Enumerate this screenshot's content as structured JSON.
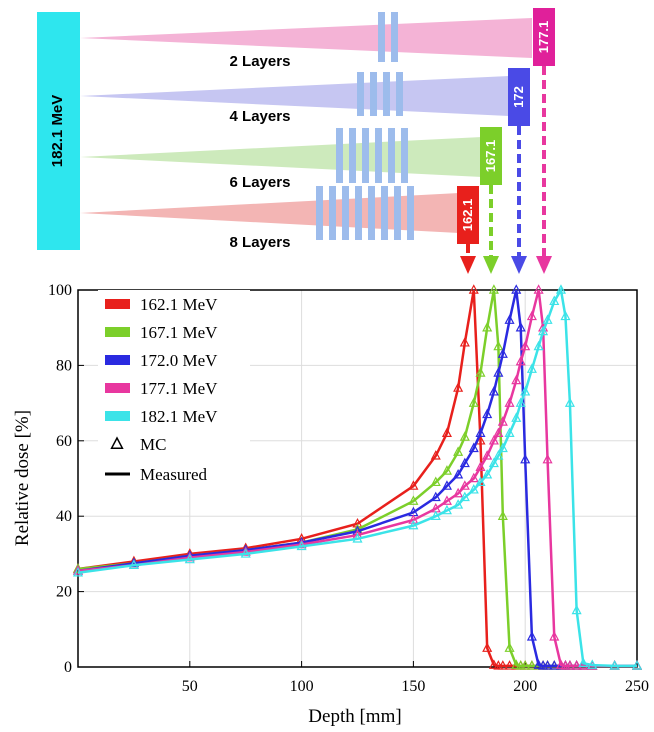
{
  "diagram": {
    "source_energy": "182.1 MeV",
    "rows": [
      {
        "layers": "2 Layers",
        "energy": "177.1"
      },
      {
        "layers": "4 Layers",
        "energy": "172"
      },
      {
        "layers": "6 Layers",
        "energy": "167.1"
      },
      {
        "layers": "8 Layers",
        "energy": "162.1"
      }
    ]
  },
  "chart_data": {
    "type": "line",
    "xlabel": "Depth [mm]",
    "ylabel": "Relative dose [%]",
    "x": [
      0,
      25,
      50,
      75,
      100,
      125,
      150,
      160,
      165,
      170,
      173,
      177,
      180,
      183,
      186,
      188,
      190,
      193,
      196,
      198,
      200,
      203,
      206,
      208,
      210,
      213,
      216,
      218,
      220,
      223,
      226,
      230,
      240,
      250
    ],
    "series": [
      {
        "name": "162.1 MeV",
        "color": "#e8201c",
        "values": [
          26,
          28,
          30,
          31.5,
          34,
          38,
          48,
          56,
          62,
          74,
          86,
          100,
          60,
          5,
          0.5,
          0.3,
          0.3,
          0.3,
          0.3,
          0.3,
          0.3,
          0.3,
          0.3,
          0.3,
          0.3,
          0.3,
          0.3,
          0.3,
          0.3,
          0.3,
          0.3,
          0.3,
          0.3,
          0.3
        ]
      },
      {
        "name": "167.1 MeV",
        "color": "#7ccf2a",
        "values": [
          26,
          27.5,
          29.5,
          31,
          33,
          36.5,
          44,
          49,
          52,
          57,
          61,
          70,
          78,
          90,
          100,
          85,
          40,
          5,
          0.5,
          0.3,
          0.3,
          0.3,
          0.3,
          0.3,
          0.3,
          0.3,
          0.3,
          0.3,
          0.3,
          0.3,
          0.3,
          0.3,
          0.3,
          0.3
        ]
      },
      {
        "name": "172.0 MeV",
        "color": "#2a2ae0",
        "values": [
          25.5,
          27.5,
          29.5,
          31,
          33,
          36,
          41,
          45,
          48,
          51,
          54,
          58,
          62,
          67,
          73,
          78,
          83,
          92,
          100,
          90,
          55,
          8,
          0.5,
          0.3,
          0.3,
          0.3,
          0.3,
          0.3,
          0.3,
          0.3,
          0.3,
          0.3,
          0.3,
          0.3
        ]
      },
      {
        "name": "177.1 MeV",
        "color": "#e8379f",
        "values": [
          25.5,
          27,
          29,
          30.5,
          32.5,
          35,
          39,
          42,
          44,
          46,
          48,
          50,
          53,
          56,
          60,
          62,
          65,
          70,
          76,
          81,
          85,
          93,
          100,
          90,
          55,
          8,
          0.5,
          0.3,
          0.3,
          0.3,
          0.3,
          0.3,
          0.3,
          0.3
        ]
      },
      {
        "name": "182.1 MeV",
        "color": "#3be3e8",
        "values": [
          25,
          27,
          28.5,
          30,
          32,
          34,
          37.5,
          40,
          41.5,
          43,
          45,
          47,
          49,
          51,
          54,
          56,
          58,
          62,
          66,
          70,
          73,
          79,
          85,
          89,
          92,
          97,
          100,
          93,
          70,
          15,
          1,
          0.5,
          0.3,
          0.3
        ]
      }
    ],
    "legend_extra": [
      {
        "name": "MC",
        "marker": "triangle"
      },
      {
        "name": "Measured",
        "marker": "line"
      }
    ],
    "xlim": [
      0,
      250
    ],
    "xticks": [
      50,
      100,
      150,
      200,
      250
    ],
    "ylim": [
      0,
      100
    ],
    "yticks": [
      0,
      20,
      40,
      60,
      80,
      100
    ],
    "grid": true,
    "legend": "upper left"
  }
}
